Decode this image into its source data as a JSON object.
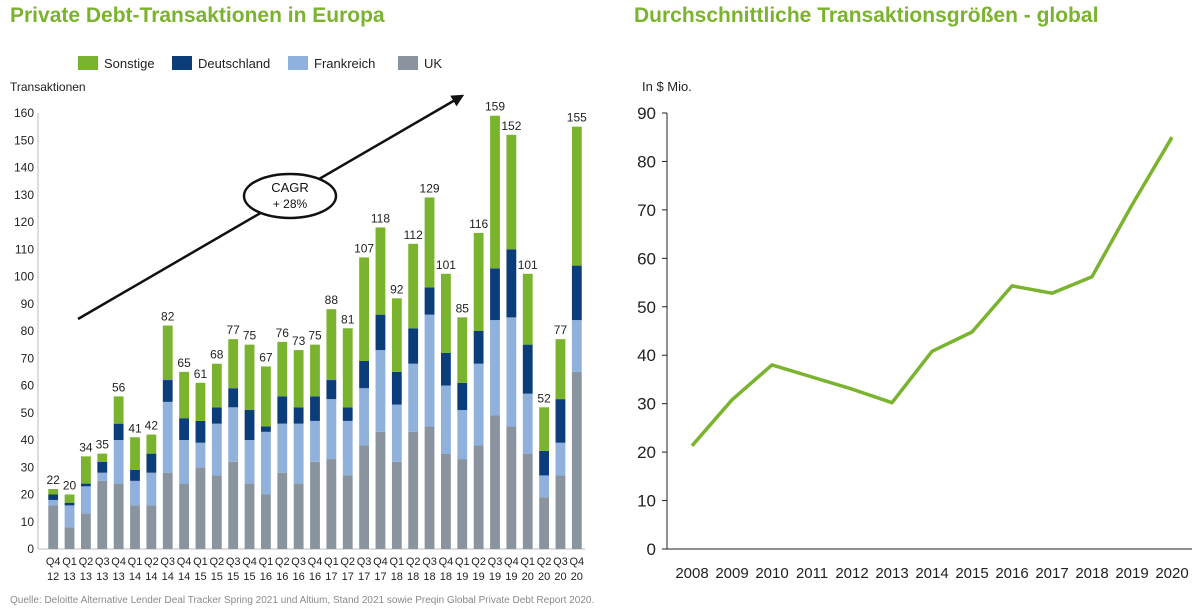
{
  "left_title": "Private Debt-Transaktionen in Europa",
  "right_title": "Durchschnittliche Transaktionsgrößen - global",
  "source": "Quelle: Deloitte Alternative Lender Deal Tracker Spring 2021 und Altium, Stand 2021 sowie Preqin Global Private Debt Report 2020.",
  "colors": {
    "Sonstige": "#7ab32e",
    "Deutschland": "#0b3d7a",
    "Frankreich": "#8fb1dc",
    "UK": "#8a949e",
    "line": "#7ab32e"
  },
  "chart_data": [
    {
      "type": "bar",
      "stacked": true,
      "title": "Private Debt-Transaktionen in Europa",
      "ylabel": "Transaktionen",
      "ylim": [
        0,
        160
      ],
      "yticks": [
        0,
        10,
        20,
        30,
        40,
        50,
        60,
        70,
        80,
        90,
        100,
        110,
        120,
        130,
        140,
        150,
        160
      ],
      "legend": [
        "Sonstige",
        "Deutschland",
        "Frankreich",
        "UK"
      ],
      "legend_position": "top",
      "categories": [
        [
          "Q4",
          "12"
        ],
        [
          "Q1",
          "13"
        ],
        [
          "Q2",
          "13"
        ],
        [
          "Q3",
          "13"
        ],
        [
          "Q4",
          "13"
        ],
        [
          "Q1",
          "14"
        ],
        [
          "Q2",
          "14"
        ],
        [
          "Q3",
          "14"
        ],
        [
          "Q4",
          "14"
        ],
        [
          "Q1",
          "15"
        ],
        [
          "Q2",
          "15"
        ],
        [
          "Q3",
          "15"
        ],
        [
          "Q4",
          "15"
        ],
        [
          "Q1",
          "16"
        ],
        [
          "Q2",
          "16"
        ],
        [
          "Q3",
          "16"
        ],
        [
          "Q4",
          "16"
        ],
        [
          "Q1",
          "17"
        ],
        [
          "Q2",
          "17"
        ],
        [
          "Q3",
          "17"
        ],
        [
          "Q4",
          "17"
        ],
        [
          "Q1",
          "18"
        ],
        [
          "Q2",
          "18"
        ],
        [
          "Q3",
          "18"
        ],
        [
          "Q4",
          "18"
        ],
        [
          "Q1",
          "19"
        ],
        [
          "Q2",
          "19"
        ],
        [
          "Q3",
          "19"
        ],
        [
          "Q4",
          "19"
        ],
        [
          "Q1",
          "20"
        ],
        [
          "Q2",
          "20"
        ],
        [
          "Q3",
          "20"
        ],
        [
          "Q4",
          "20"
        ]
      ],
      "series": [
        {
          "name": "UK",
          "values": [
            16,
            8,
            13,
            25,
            24,
            16,
            16,
            28,
            24,
            30,
            27,
            32,
            24,
            20,
            28,
            24,
            32,
            33,
            27,
            38,
            43,
            32,
            43,
            45,
            35,
            33,
            38,
            49,
            45,
            35,
            19,
            27,
            65
          ]
        },
        {
          "name": "Frankreich",
          "values": [
            2,
            8,
            10,
            3,
            16,
            9,
            12,
            26,
            16,
            9,
            19,
            20,
            16,
            23,
            18,
            22,
            15,
            22,
            20,
            21,
            30,
            21,
            25,
            41,
            25,
            18,
            30,
            35,
            40,
            22,
            8,
            12,
            19
          ]
        },
        {
          "name": "Deutschland",
          "values": [
            2,
            1,
            1,
            4,
            6,
            4,
            7,
            8,
            8,
            8,
            6,
            7,
            11,
            2,
            10,
            6,
            9,
            7,
            5,
            10,
            13,
            12,
            13,
            10,
            12,
            10,
            12,
            19,
            25,
            18,
            9,
            16,
            20
          ]
        },
        {
          "name": "Sonstige",
          "values": [
            2,
            3,
            10,
            3,
            10,
            12,
            7,
            20,
            17,
            14,
            16,
            18,
            24,
            22,
            20,
            21,
            19,
            26,
            29,
            38,
            32,
            27,
            31,
            33,
            29,
            24,
            36,
            56,
            42,
            26,
            16,
            22,
            51
          ]
        }
      ],
      "totals": [
        22,
        20,
        34,
        35,
        56,
        41,
        42,
        82,
        65,
        61,
        68,
        77,
        75,
        67,
        76,
        73,
        75,
        88,
        81,
        107,
        118,
        92,
        112,
        129,
        101,
        85,
        116,
        159,
        152,
        101,
        52,
        77,
        155
      ],
      "annotation": [
        "CAGR",
        "+ 28%"
      ]
    },
    {
      "type": "line",
      "title": "Durchschnittliche Transaktionsgrößen - global",
      "ylabel": "In $ Mio.",
      "ylim": [
        0,
        90
      ],
      "yticks": [
        0,
        10,
        20,
        30,
        40,
        50,
        60,
        70,
        80,
        90
      ],
      "x": [
        2008,
        2009,
        2010,
        2011,
        2012,
        2013,
        2014,
        2015,
        2016,
        2017,
        2018,
        2019,
        2020
      ],
      "y": [
        21.3,
        30.8,
        38.0,
        35.5,
        33.0,
        30.2,
        40.8,
        44.8,
        54.3,
        52.8,
        56.2,
        71.0,
        85.0
      ]
    }
  ]
}
